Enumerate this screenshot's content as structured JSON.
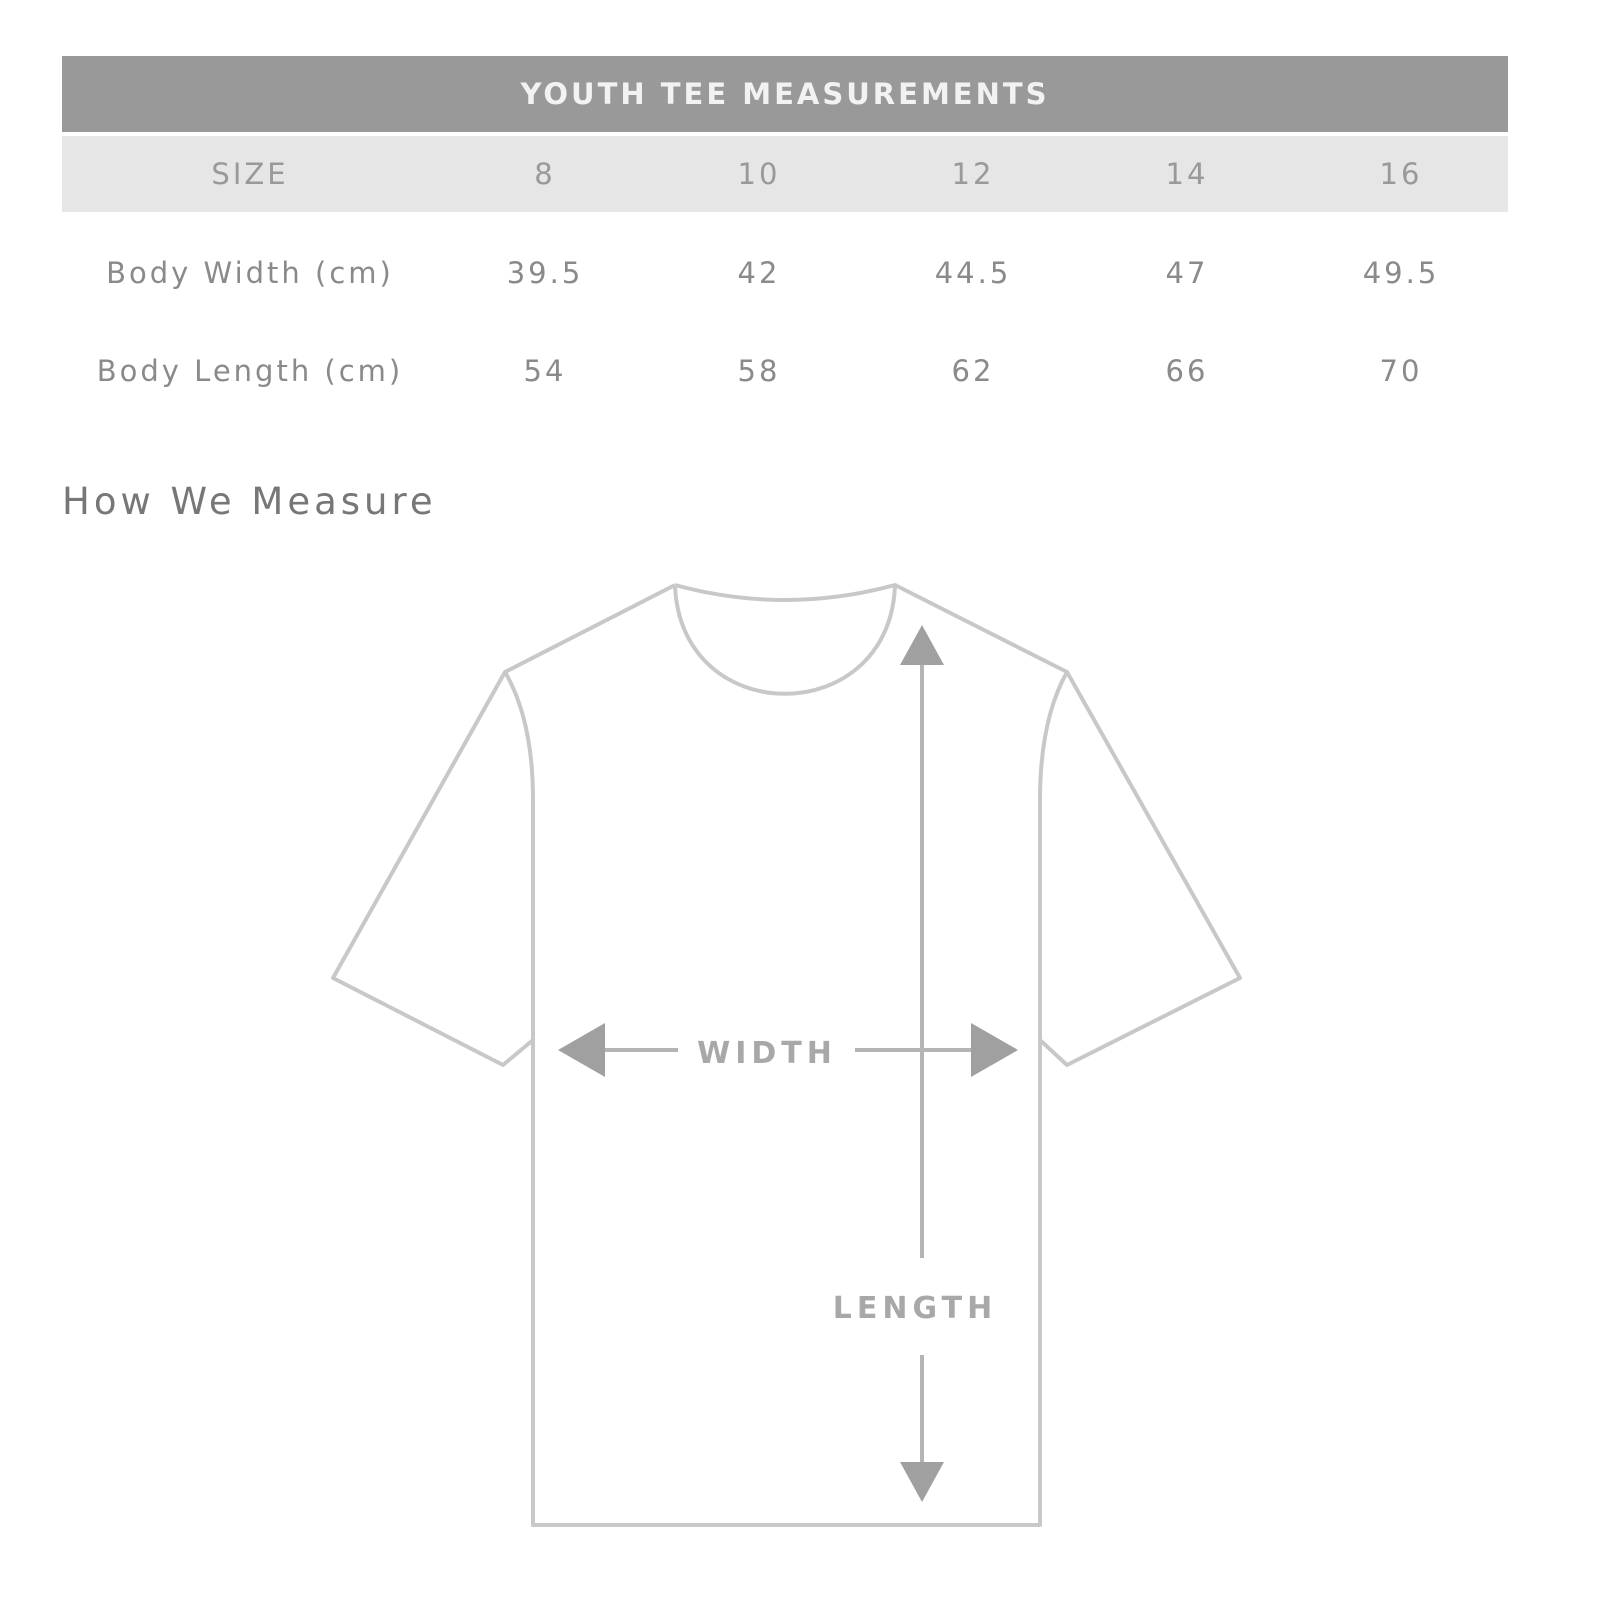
{
  "table": {
    "title": "YOUTH TEE MEASUREMENTS",
    "size_label": "SIZE",
    "sizes": [
      "8",
      "10",
      "12",
      "14",
      "16"
    ],
    "rows": [
      {
        "label": "Body Width (cm)",
        "values": [
          "39.5",
          "42",
          "44.5",
          "47",
          "49.5"
        ]
      },
      {
        "label": "Body Length (cm)",
        "values": [
          "54",
          "58",
          "62",
          "66",
          "70"
        ]
      }
    ]
  },
  "how_we_measure": {
    "heading": "How We Measure",
    "width_label": "WIDTH",
    "length_label": "LENGTH"
  },
  "colors": {
    "header_bg": "#999999",
    "size_row_bg": "#e6e6e6",
    "outline": "#c8c8c8",
    "arrow": "#a0a0a0"
  }
}
